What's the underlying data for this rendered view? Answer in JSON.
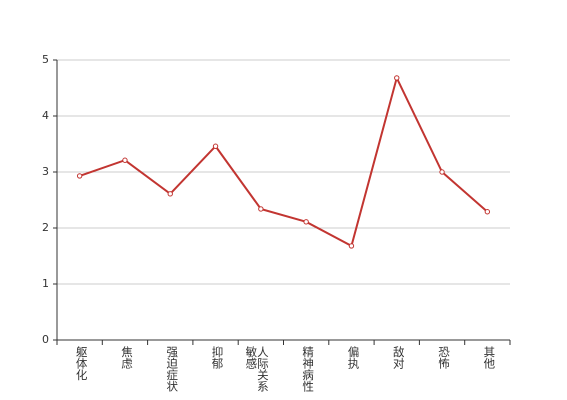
{
  "chart_data": {
    "type": "line",
    "categories": [
      "躯体化",
      "焦虑",
      "强迫症状",
      "抑郁",
      "人际关系敏感",
      "精神病性",
      "偏执",
      "敌对",
      "恐怖",
      "其他"
    ],
    "values": [
      2.93,
      3.21,
      2.61,
      3.46,
      2.34,
      2.11,
      1.68,
      4.68,
      3.0,
      2.29
    ],
    "color": "#c23531",
    "ylim": [
      0,
      5
    ],
    "yticks": [
      0,
      1,
      2,
      3,
      4,
      5
    ],
    "grid": true
  }
}
